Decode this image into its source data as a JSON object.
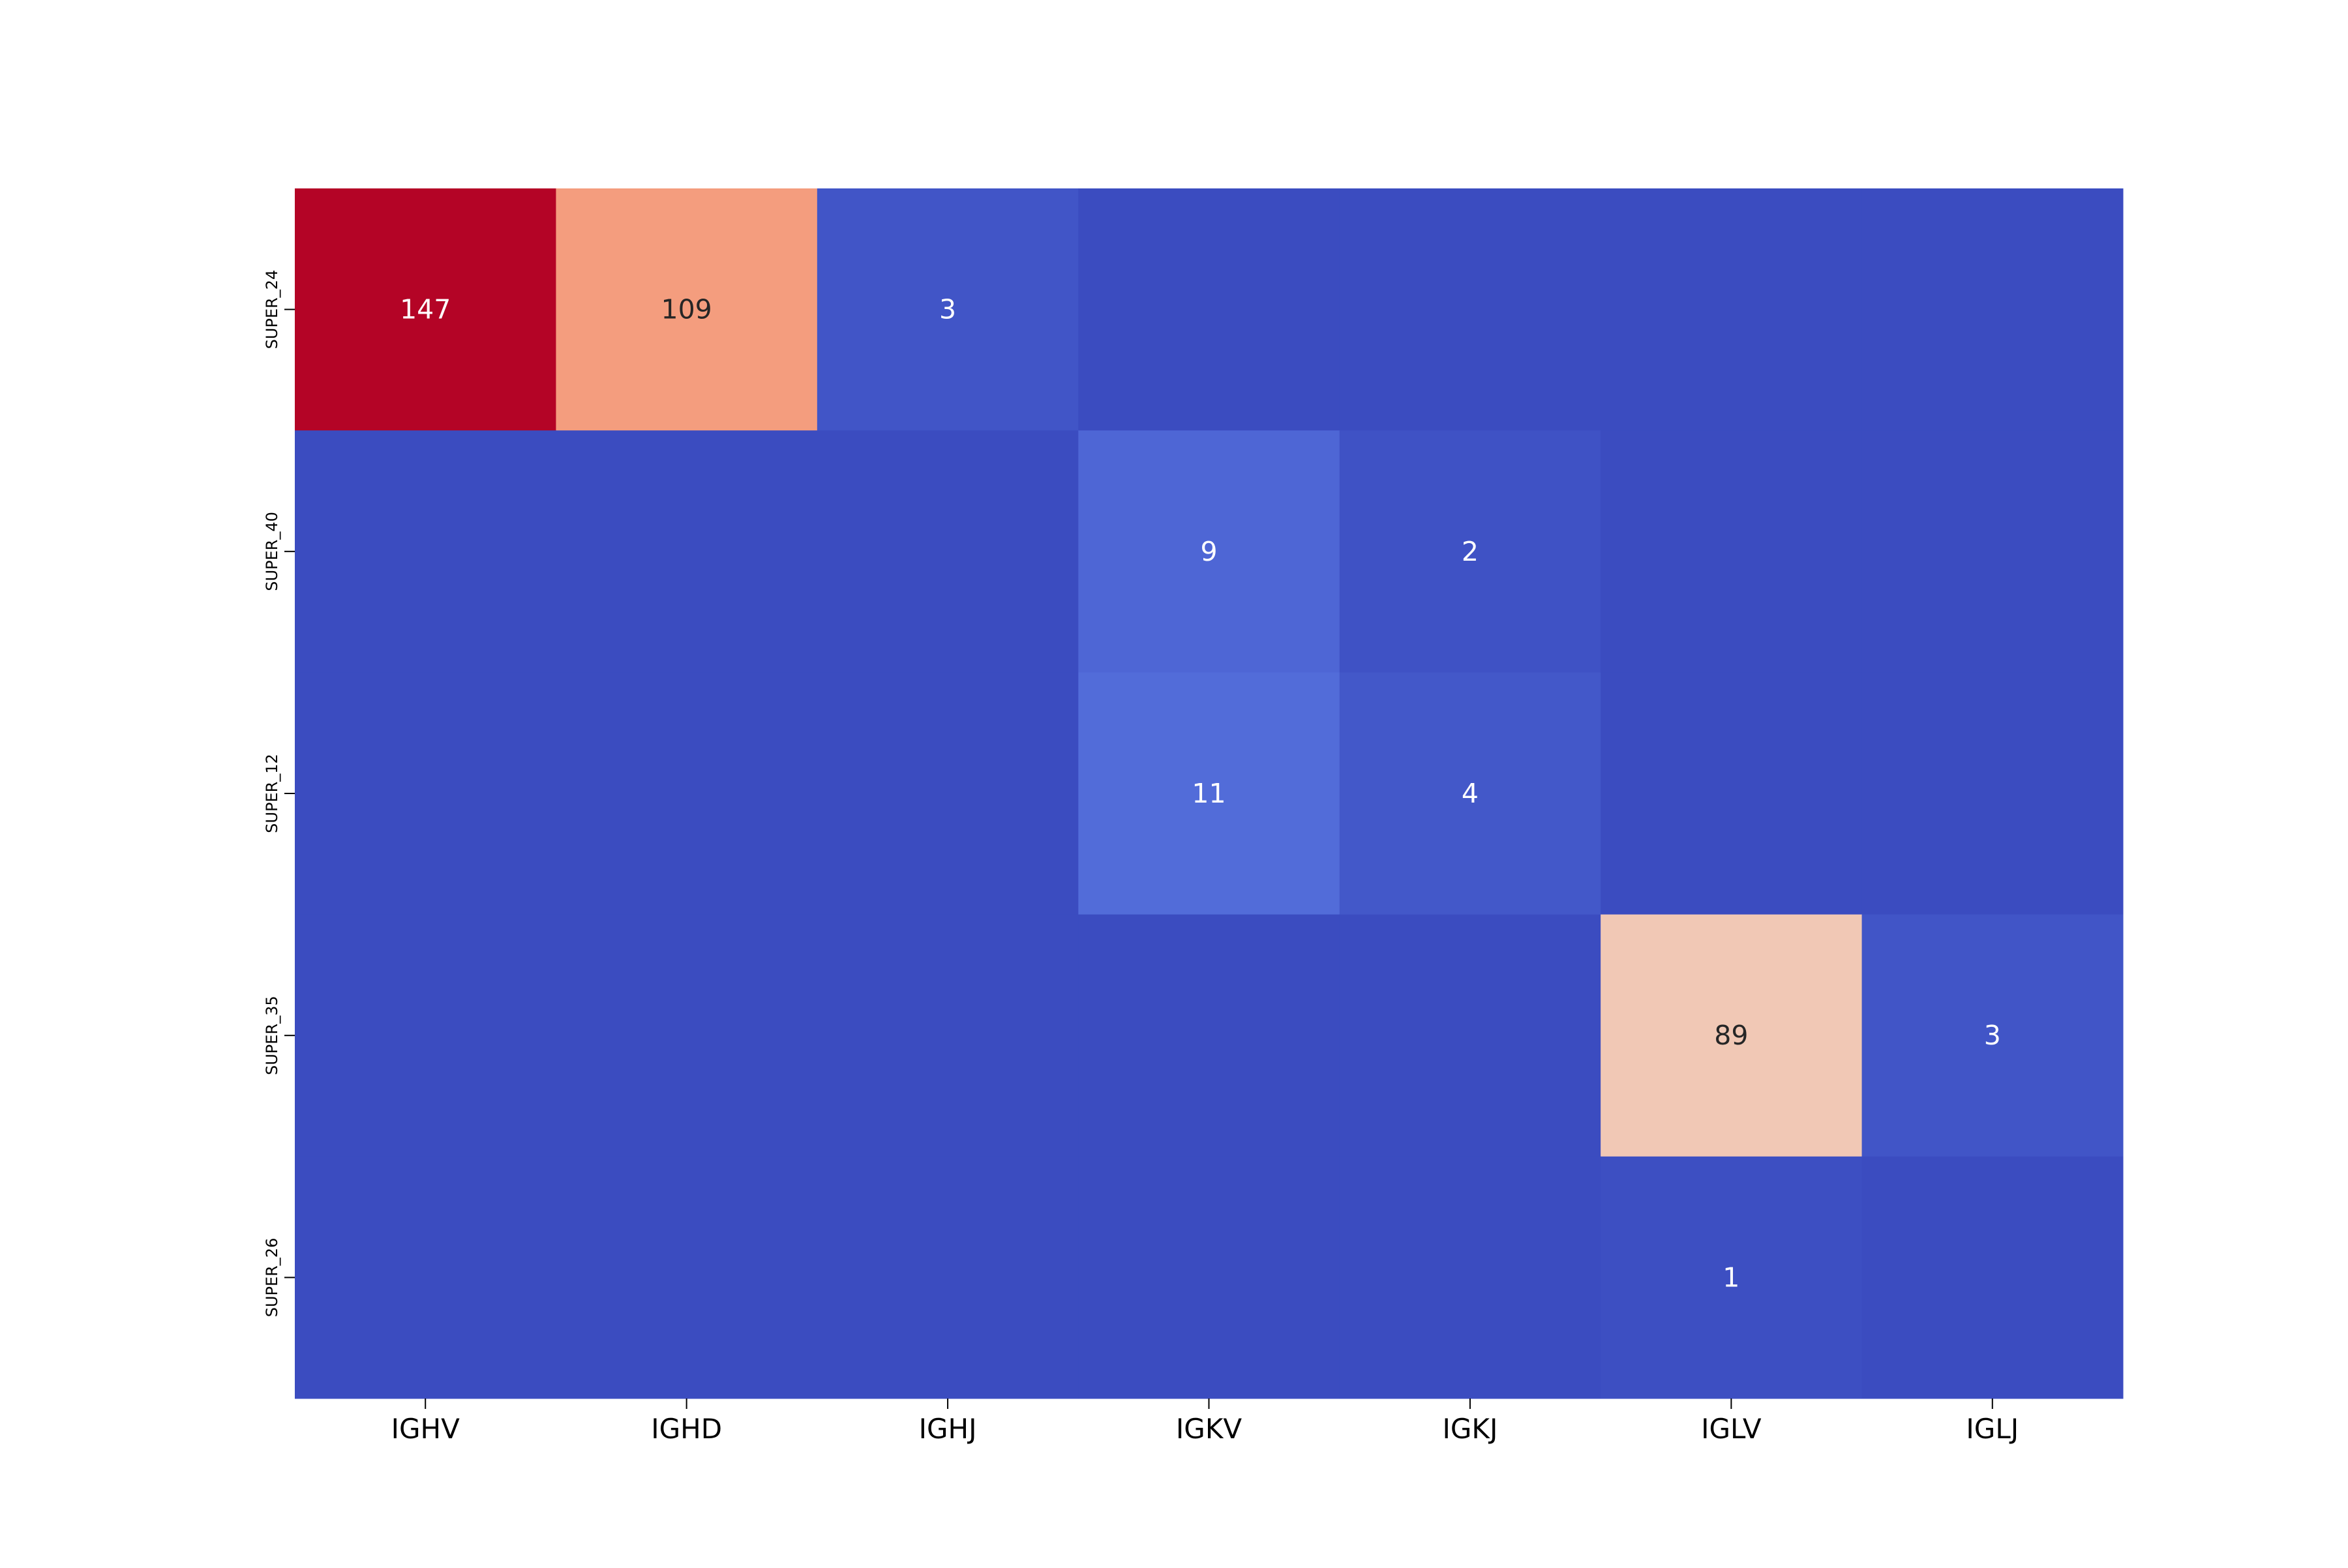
{
  "chart_data": {
    "type": "heatmap",
    "title": "",
    "xlabel": "",
    "ylabel": "",
    "columns": [
      "IGHV",
      "IGHD",
      "IGHJ",
      "IGKV",
      "IGKJ",
      "IGLV",
      "IGLJ"
    ],
    "rows": [
      "SUPER_24",
      "SUPER_40",
      "SUPER_12",
      "SUPER_35",
      "SUPER_26"
    ],
    "values": [
      [
        147,
        109,
        3,
        0,
        0,
        0,
        0
      ],
      [
        0,
        0,
        0,
        9,
        2,
        0,
        0
      ],
      [
        0,
        0,
        0,
        11,
        4,
        0,
        0
      ],
      [
        0,
        0,
        0,
        0,
        0,
        89,
        3
      ],
      [
        0,
        0,
        0,
        0,
        0,
        1,
        0
      ]
    ],
    "annotations": [
      [
        "147",
        "109",
        "3",
        "",
        "",
        "",
        ""
      ],
      [
        "",
        "",
        "",
        "9",
        "2",
        "",
        ""
      ],
      [
        "",
        "",
        "",
        "11",
        "4",
        "",
        ""
      ],
      [
        "",
        "",
        "",
        "",
        "",
        "89",
        "3"
      ],
      [
        "",
        "",
        "",
        "",
        "",
        "1",
        ""
      ]
    ],
    "value_range": [
      0,
      147
    ],
    "colormap": "coolwarm",
    "colorbar": false,
    "grid": false
  }
}
